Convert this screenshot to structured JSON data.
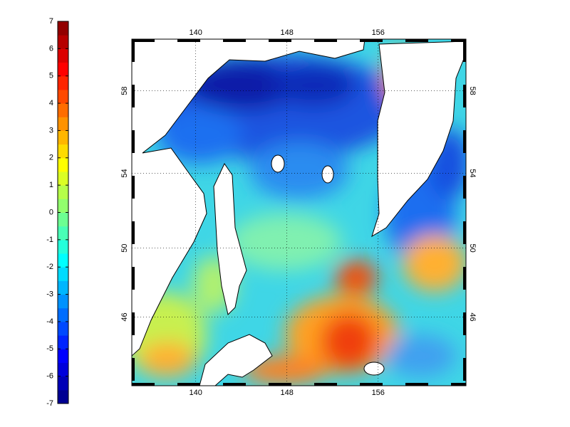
{
  "colorbar": {
    "clim": [
      -7,
      7
    ],
    "levels": 28,
    "ticks": [
      -7,
      -6,
      -5,
      -4,
      -3,
      -2,
      -1,
      0,
      1,
      2,
      3,
      4,
      5,
      6,
      7
    ]
  },
  "map": {
    "projection": "mercator",
    "xlim": [
      134.4,
      163.7
    ],
    "ylim": [
      41.7,
      60.3
    ],
    "xticks": [
      140,
      148,
      156
    ],
    "yticks": [
      46,
      50,
      54,
      58
    ],
    "grid": true
  }
}
